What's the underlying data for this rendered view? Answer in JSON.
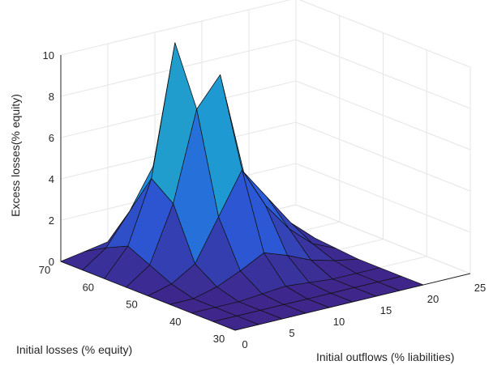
{
  "chart_data": {
    "type": "surface",
    "title": "",
    "xlabel": "Initial outflows (% liabilities)",
    "ylabel": "Initial losses (% equity)",
    "zlabel": "Excess losses(% equity)",
    "x_ticks": [
      "0",
      "5",
      "10",
      "15",
      "20",
      "25"
    ],
    "y_ticks": [
      "30",
      "40",
      "50",
      "60",
      "70"
    ],
    "z_ticks": [
      "0",
      "2",
      "4",
      "6",
      "8",
      "10"
    ],
    "xlim": [
      0,
      25
    ],
    "ylim": [
      30,
      70
    ],
    "zlim": [
      0,
      10
    ],
    "grid": true,
    "colormap": [
      "#3e268a",
      "#2c58d6",
      "#1d8ddd",
      "#23aebb",
      "#56c8a4"
    ],
    "x": [
      0,
      2.5,
      5,
      7.5,
      10,
      12.5,
      15,
      17.5,
      20
    ],
    "y": [
      30,
      35,
      40,
      45,
      50,
      55,
      60,
      65,
      70
    ],
    "z": [
      [
        0,
        0,
        0,
        0,
        0,
        0,
        0,
        0,
        0
      ],
      [
        0,
        0,
        0,
        0,
        0,
        0,
        0,
        0,
        0
      ],
      [
        0,
        0,
        0,
        0.1,
        0.2,
        0.1,
        0,
        0,
        0
      ],
      [
        0,
        0,
        0.3,
        0.8,
        1.4,
        1.0,
        0.5,
        0.2,
        0
      ],
      [
        0,
        0.3,
        1.0,
        3.0,
        5.0,
        3.0,
        1.6,
        0.6,
        0.1
      ],
      [
        0,
        0.8,
        3.5,
        7.8,
        9.2,
        4.2,
        2.7,
        1.2,
        0.2
      ],
      [
        0,
        1.3,
        4.3,
        10.6,
        6.0,
        3.6,
        2.2,
        1.0,
        0.1
      ],
      [
        0,
        0.8,
        2.3,
        4.2,
        2.9,
        2.1,
        1.0,
        0.3,
        0
      ],
      [
        0,
        0.2,
        0.4,
        0.8,
        0.5,
        0.2,
        0,
        0,
        0
      ]
    ]
  }
}
